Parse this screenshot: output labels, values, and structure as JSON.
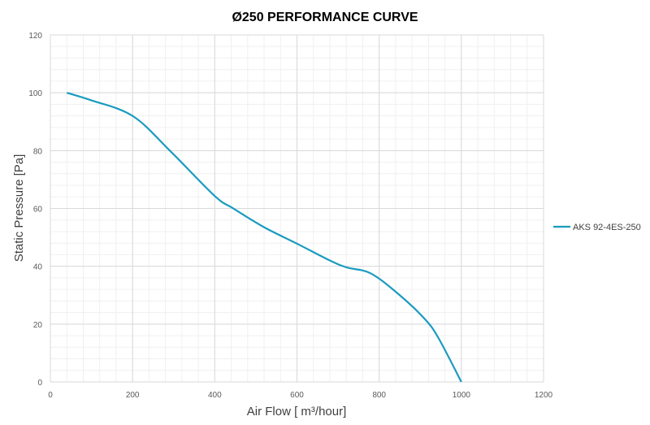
{
  "chart_data": {
    "type": "line",
    "title": "Ø250 PERFORMANCE CURVE",
    "xlabel": "Air Flow [ m³/hour]",
    "ylabel": "Static Pressure [Pa]",
    "xlim": [
      0,
      1200
    ],
    "ylim": [
      0,
      120
    ],
    "xticks": [
      0,
      200,
      400,
      600,
      800,
      1000,
      1200
    ],
    "yticks": [
      0,
      20,
      40,
      60,
      80,
      100,
      120
    ],
    "grid": true,
    "legend_position": "right",
    "series_color": "#1A9BBF",
    "series": [
      {
        "name": "AKS 92-4ES-250",
        "x": [
          40,
          95,
          200,
          292,
          400,
          444,
          520,
          599,
          680,
          721,
          780,
          850,
          912,
          945,
          1000
        ],
        "y": [
          100,
          97.6,
          92,
          79.8,
          64.3,
          60.1,
          53.5,
          47.9,
          42,
          39.6,
          37.5,
          30,
          21.6,
          15,
          0
        ]
      }
    ]
  }
}
